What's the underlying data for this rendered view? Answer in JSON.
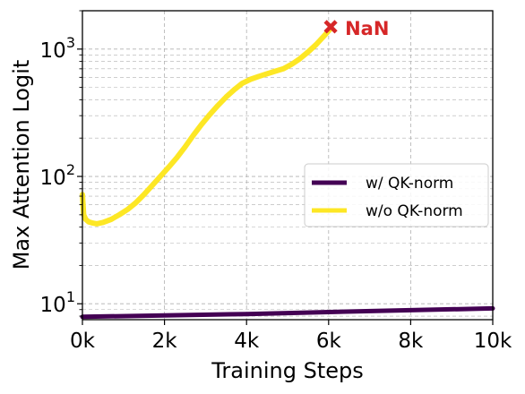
{
  "chart_data": {
    "type": "line",
    "title": "",
    "xlabel": "Training Steps",
    "ylabel": "Max Attention Logit",
    "xlim": [
      0,
      10000
    ],
    "ylim": [
      7.5,
      2000
    ],
    "yscale": "log",
    "grid": true,
    "legend_position": "center-right",
    "x_ticks": [
      {
        "value": 0,
        "label": "0k"
      },
      {
        "value": 2000,
        "label": "2k"
      },
      {
        "value": 4000,
        "label": "4k"
      },
      {
        "value": 6000,
        "label": "6k"
      },
      {
        "value": 8000,
        "label": "8k"
      },
      {
        "value": 10000,
        "label": "10k"
      }
    ],
    "y_ticks": [
      {
        "value": 10,
        "base": "10",
        "exp": "1"
      },
      {
        "value": 100,
        "base": "10",
        "exp": "2"
      },
      {
        "value": 1000,
        "base": "10",
        "exp": "3"
      }
    ],
    "series": [
      {
        "name": "w/ QK-norm",
        "color": "#440154",
        "x": [
          0,
          2000,
          4000,
          6000,
          8000,
          10000
        ],
        "y": [
          7.9,
          8.1,
          8.3,
          8.6,
          8.9,
          9.2
        ]
      },
      {
        "name": "w/o QK-norm",
        "color": "#fde725",
        "x": [
          0,
          30,
          80,
          150,
          250,
          350,
          500,
          700,
          900,
          1100,
          1300,
          1500,
          1700,
          1900,
          2100,
          2300,
          2500,
          2700,
          2900,
          3100,
          3300,
          3500,
          3700,
          3900,
          4100,
          4300,
          4500,
          4700,
          4900,
          5100,
          5300,
          5500,
          5700,
          5900,
          6050
        ],
        "y": [
          72,
          50,
          46,
          44,
          43,
          42.5,
          43.5,
          46,
          50,
          55,
          62,
          72,
          85,
          100,
          118,
          140,
          170,
          210,
          255,
          305,
          360,
          420,
          480,
          540,
          580,
          610,
          640,
          670,
          700,
          760,
          840,
          950,
          1090,
          1280,
          1450
        ]
      }
    ],
    "annotations": [
      {
        "text": "NaN",
        "marker": "x",
        "x": 6050,
        "y": 1450,
        "color": "#d62728"
      }
    ]
  }
}
